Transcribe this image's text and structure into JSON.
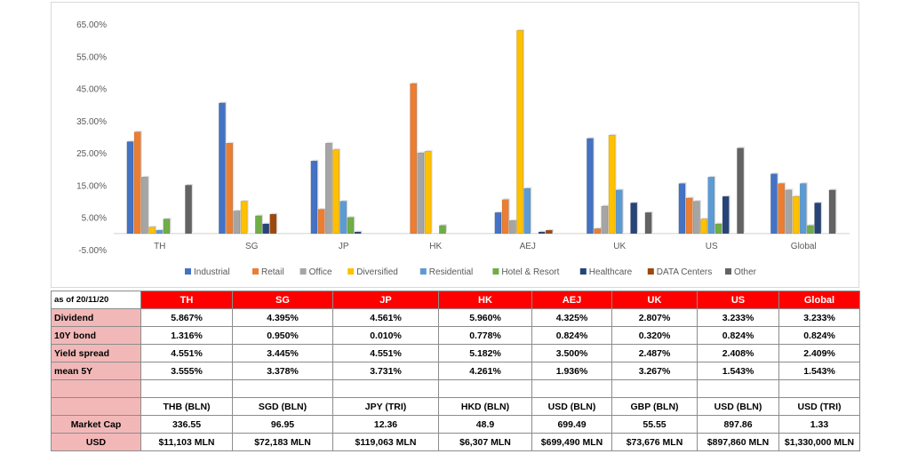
{
  "chart_data": {
    "type": "bar",
    "categories": [
      "TH",
      "SG",
      "JP",
      "HK",
      "AEJ",
      "UK",
      "US",
      "Global"
    ],
    "series": [
      {
        "name": "Industrial",
        "color": "#4472c4",
        "values": [
          28.5,
          40.5,
          22.5,
          0,
          6.5,
          29.5,
          15.5,
          18.5
        ]
      },
      {
        "name": "Retail",
        "color": "#ed7d31",
        "values": [
          31.5,
          28.0,
          7.5,
          46.5,
          10.5,
          1.5,
          11.0,
          15.5
        ]
      },
      {
        "name": "Office",
        "color": "#a5a5a5",
        "values": [
          17.5,
          7.0,
          28.0,
          25.0,
          4.0,
          8.5,
          10.0,
          13.5
        ]
      },
      {
        "name": "Diversified",
        "color": "#ffc000",
        "values": [
          2.0,
          10.0,
          26.0,
          25.5,
          63.0,
          30.5,
          4.5,
          11.5
        ]
      },
      {
        "name": "Residential",
        "color": "#5b9bd5",
        "values": [
          1.0,
          0,
          10.0,
          0,
          14.0,
          13.5,
          17.5,
          15.5
        ]
      },
      {
        "name": "Hotel & Resort",
        "color": "#70ad47",
        "values": [
          4.5,
          5.5,
          5.0,
          2.5,
          0,
          0,
          3.0,
          2.5
        ]
      },
      {
        "name": "Healthcare",
        "color": "#264478",
        "values": [
          0,
          3.0,
          0.5,
          0,
          0.5,
          9.5,
          11.5,
          9.5
        ]
      },
      {
        "name": "DATA Centers",
        "color": "#9e480e",
        "values": [
          0,
          6.0,
          0,
          0,
          1.0,
          0,
          0,
          0
        ]
      },
      {
        "name": "Other",
        "color": "#636363",
        "values": [
          15.0,
          0,
          0,
          0,
          0,
          6.5,
          26.5,
          13.5
        ]
      }
    ],
    "yticks": [
      "65.00%",
      "55.00%",
      "45.00%",
      "35.00%",
      "25.00%",
      "15.00%",
      "5.00%",
      "-5.00%"
    ],
    "ylim": [
      -5,
      65
    ],
    "legend": "bottom",
    "grid": false
  },
  "table": {
    "corner": "as of 20/11/20",
    "columns": [
      "TH",
      "SG",
      "JP",
      "HK",
      "AEJ",
      "UK",
      "US",
      "Global"
    ],
    "rows": [
      {
        "label": "Dividend",
        "values": [
          "5.867%",
          "4.395%",
          "4.561%",
          "5.960%",
          "4.325%",
          "2.807%",
          "3.233%",
          "3.233%"
        ]
      },
      {
        "label": "10Y bond",
        "values": [
          "1.316%",
          "0.950%",
          "0.010%",
          "0.778%",
          "0.824%",
          "0.320%",
          "0.824%",
          "0.824%"
        ]
      },
      {
        "label": "Yield spread",
        "values": [
          "4.551%",
          "3.445%",
          "4.551%",
          "5.182%",
          "3.500%",
          "2.487%",
          "2.408%",
          "2.409%"
        ]
      },
      {
        "label": "mean 5Y",
        "values": [
          "3.555%",
          "3.378%",
          "3.731%",
          "4.261%",
          "1.936%",
          "3.267%",
          "1.543%",
          "1.543%"
        ]
      },
      {
        "label": "",
        "values": [
          "",
          "",
          "",
          "",
          "",
          "",
          "",
          ""
        ]
      },
      {
        "label": "",
        "values": [
          "THB (BLN)",
          "SGD (BLN)",
          "JPY (TRI)",
          "HKD (BLN)",
          "USD (BLN)",
          "GBP (BLN)",
          "USD (BLN)",
          "USD (TRI)"
        ]
      },
      {
        "label": "Market Cap",
        "values": [
          "336.55",
          "96.95",
          "12.36",
          "48.9",
          "699.49",
          "55.55",
          "897.86",
          "1.33"
        ]
      },
      {
        "label": "USD",
        "values": [
          "$11,103 MLN",
          "$72,183 MLN",
          "$119,063 MLN",
          "$6,307 MLN",
          "$699,490 MLN",
          "$73,676 MLN",
          "$897,860 MLN",
          "$1,330,000 MLN"
        ]
      }
    ]
  }
}
